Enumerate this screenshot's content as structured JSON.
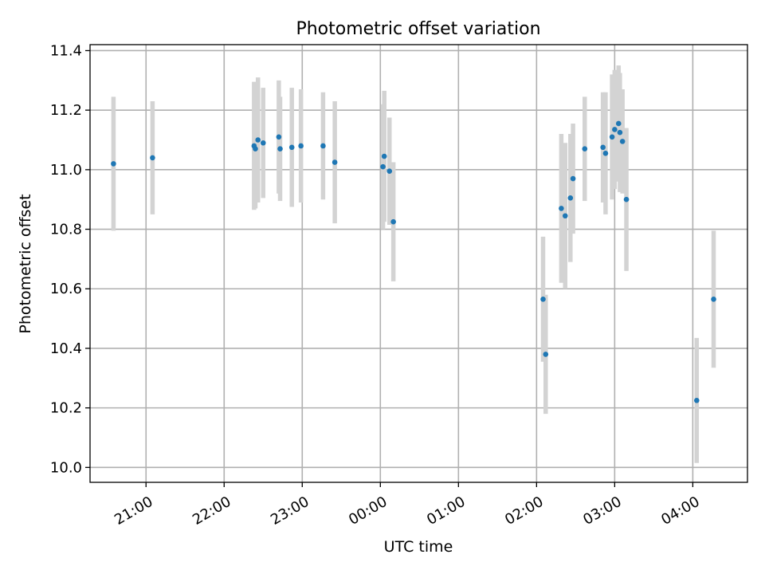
{
  "chart_data": {
    "type": "scatter",
    "title": "Photometric offset variation",
    "xlabel": "UTC time",
    "ylabel": "Photometric offset",
    "grid": true,
    "x_axis": {
      "type": "time",
      "start": "20:17",
      "end": "04:42",
      "ticks": [
        "21:00",
        "22:00",
        "23:00",
        "00:00",
        "01:00",
        "02:00",
        "03:00",
        "04:00"
      ]
    },
    "ylim": [
      9.95,
      11.42
    ],
    "yticks": [
      "10.0",
      "10.2",
      "10.4",
      "10.6",
      "10.8",
      "11.0",
      "11.2",
      "11.4"
    ],
    "colors": {
      "point": "#1f77b4",
      "errorbar": "#d3d3d3"
    },
    "series": [
      {
        "points": [
          {
            "x": "20:35",
            "y": 11.02,
            "err": 0.225
          },
          {
            "x": "21:05",
            "y": 11.04,
            "err": 0.19
          },
          {
            "x": "22:23",
            "y": 11.08,
            "err": 0.215
          },
          {
            "x": "22:24",
            "y": 11.07,
            "err": 0.2
          },
          {
            "x": "22:26",
            "y": 11.1,
            "err": 0.21
          },
          {
            "x": "22:30",
            "y": 11.09,
            "err": 0.185
          },
          {
            "x": "22:42",
            "y": 11.11,
            "err": 0.19
          },
          {
            "x": "22:43",
            "y": 11.07,
            "err": 0.175
          },
          {
            "x": "22:52",
            "y": 11.075,
            "err": 0.2
          },
          {
            "x": "22:59",
            "y": 11.08,
            "err": 0.19
          },
          {
            "x": "23:16",
            "y": 11.08,
            "err": 0.18
          },
          {
            "x": "23:25",
            "y": 11.025,
            "err": 0.205
          },
          {
            "x": "00:02",
            "y": 11.01,
            "err": 0.21
          },
          {
            "x": "00:03",
            "y": 11.045,
            "err": 0.22
          },
          {
            "x": "00:07",
            "y": 10.995,
            "err": 0.18
          },
          {
            "x": "00:10",
            "y": 10.825,
            "err": 0.2
          },
          {
            "x": "02:05",
            "y": 10.565,
            "err": 0.21
          },
          {
            "x": "02:07",
            "y": 10.38,
            "err": 0.2
          },
          {
            "x": "02:19",
            "y": 10.87,
            "err": 0.25
          },
          {
            "x": "02:22",
            "y": 10.845,
            "err": 0.245
          },
          {
            "x": "02:26",
            "y": 10.905,
            "err": 0.215
          },
          {
            "x": "02:28",
            "y": 10.97,
            "err": 0.185
          },
          {
            "x": "02:37",
            "y": 11.07,
            "err": 0.175
          },
          {
            "x": "02:51",
            "y": 11.075,
            "err": 0.185
          },
          {
            "x": "02:53",
            "y": 11.055,
            "err": 0.205
          },
          {
            "x": "02:58",
            "y": 11.11,
            "err": 0.21
          },
          {
            "x": "03:00",
            "y": 11.135,
            "err": 0.2
          },
          {
            "x": "03:03",
            "y": 11.155,
            "err": 0.195
          },
          {
            "x": "03:04",
            "y": 11.125,
            "err": 0.2
          },
          {
            "x": "03:06",
            "y": 11.095,
            "err": 0.175
          },
          {
            "x": "03:09",
            "y": 10.9,
            "err": 0.24
          },
          {
            "x": "04:03",
            "y": 10.225,
            "err": 0.21
          },
          {
            "x": "04:16",
            "y": 10.565,
            "err": 0.23
          }
        ]
      }
    ]
  }
}
